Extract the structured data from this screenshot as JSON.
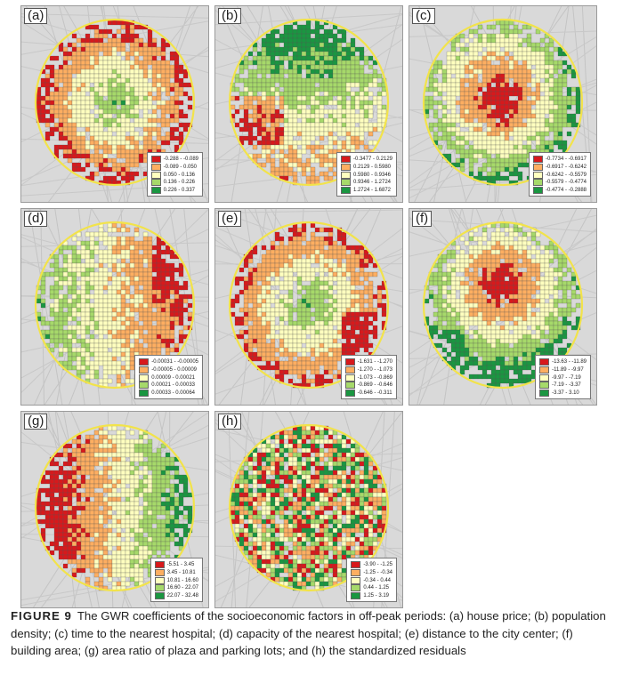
{
  "figure": {
    "fig_label": "FIGURE 9",
    "caption": "The GWR coefficients of the socioeconomic factors in off-peak periods: (a) house price; (b) population density; (c) time to the nearest hospital; (d) capacity of the nearest hospital; (e) distance to the city center; (f) building area; (g) area ratio of plaza and parking lots; and (h) the standardized residuals"
  },
  "colors": [
    "#d7191c",
    "#fdae61",
    "#ffffbf",
    "#a6d96a",
    "#1a9641"
  ],
  "panels": [
    {
      "id": "a",
      "label": "(a)",
      "pattern": "center_green",
      "legend": [
        "-0.288 - -0.089",
        "-0.089 - 0.050",
        "0.050 - 0.136",
        "0.136 - 0.226",
        "0.226 - 0.337"
      ]
    },
    {
      "id": "b",
      "label": "(b)",
      "pattern": "north_green",
      "legend": [
        "-0.3477 - 0.2129",
        "0.2129 - 0.5980",
        "0.5980 - 0.9346",
        "0.9346 - 1.2724",
        "1.2724 - 1.6872"
      ]
    },
    {
      "id": "c",
      "label": "(c)",
      "pattern": "center_red",
      "legend": [
        "-0.7734 - -0.6917",
        "-0.6917 - -0.6242",
        "-0.6242 - -0.5579",
        "-0.5579 - -0.4774",
        "-0.4774 - -0.2888"
      ]
    },
    {
      "id": "d",
      "label": "(d)",
      "pattern": "west_green",
      "legend": [
        "-0.00031 - -0.00005",
        "-0.00005 - 0.00009",
        "0.00009 - 0.00021",
        "0.00021 - 0.00033",
        "0.00033 - 0.00064"
      ]
    },
    {
      "id": "e",
      "label": "(e)",
      "pattern": "center_green2",
      "legend": [
        "-1.631 - -1.270",
        "-1.270 - -1.073",
        "-1.073 - -0.869",
        "-0.869 - -0.646",
        "-0.646 - -0.311"
      ]
    },
    {
      "id": "f",
      "label": "(f)",
      "pattern": "north_red",
      "legend": [
        "-13.63 - -11.89",
        "-11.89 - -9.97",
        "-9.97 - -7.19",
        "-7.19 - -3.37",
        "-3.37 - 3.10"
      ]
    },
    {
      "id": "g",
      "label": "(g)",
      "pattern": "west_red",
      "legend": [
        "-5.51 - 3.45",
        "3.45 - 10.81",
        "10.81 - 16.60",
        "16.60 - 22.07",
        "22.07 - 32.48"
      ]
    },
    {
      "id": "h",
      "label": "(h)",
      "pattern": "random",
      "legend": [
        "-3.90 - -1.25",
        "-1.25 - -0.34",
        "-0.34 - 0.44",
        "0.44 - 1.25",
        "1.25 - 3.19"
      ]
    }
  ]
}
